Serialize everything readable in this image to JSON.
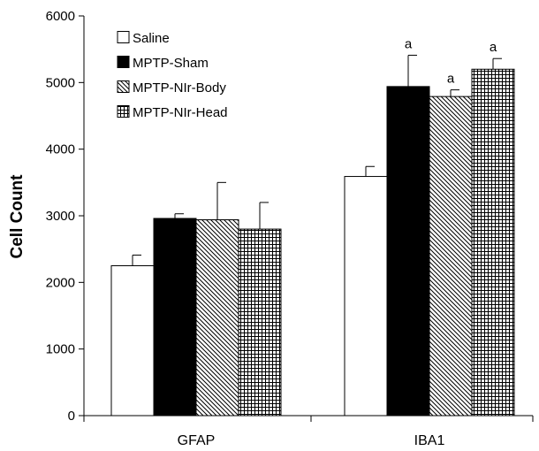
{
  "chart_data": {
    "type": "bar",
    "ylabel": "Cell Count",
    "xlabel": "",
    "ylim": [
      0,
      6000
    ],
    "yticks": [
      0,
      1000,
      2000,
      3000,
      4000,
      5000,
      6000
    ],
    "categories": [
      "GFAP",
      "IBA1"
    ],
    "grid": false,
    "legend_position": "top-left",
    "series": [
      {
        "name": "Saline",
        "fill": "white",
        "values": [
          2250,
          3590
        ],
        "errors": [
          160,
          150
        ]
      },
      {
        "name": "MPTP-Sham",
        "fill": "black",
        "values": [
          2960,
          4940
        ],
        "errors": [
          70,
          470
        ]
      },
      {
        "name": "MPTP-NIr-Body",
        "fill": "diagonal-hatch",
        "values": [
          2940,
          4790
        ],
        "errors": [
          560,
          100
        ]
      },
      {
        "name": "MPTP-NIr-Head",
        "fill": "grid-hatch",
        "values": [
          2800,
          5200
        ],
        "errors": [
          400,
          160
        ]
      }
    ],
    "annotations": [
      {
        "text": "a",
        "category": "IBA1",
        "series": "MPTP-Sham"
      },
      {
        "text": "a",
        "category": "IBA1",
        "series": "MPTP-NIr-Body"
      },
      {
        "text": "a",
        "category": "IBA1",
        "series": "MPTP-NIr-Head"
      }
    ]
  }
}
